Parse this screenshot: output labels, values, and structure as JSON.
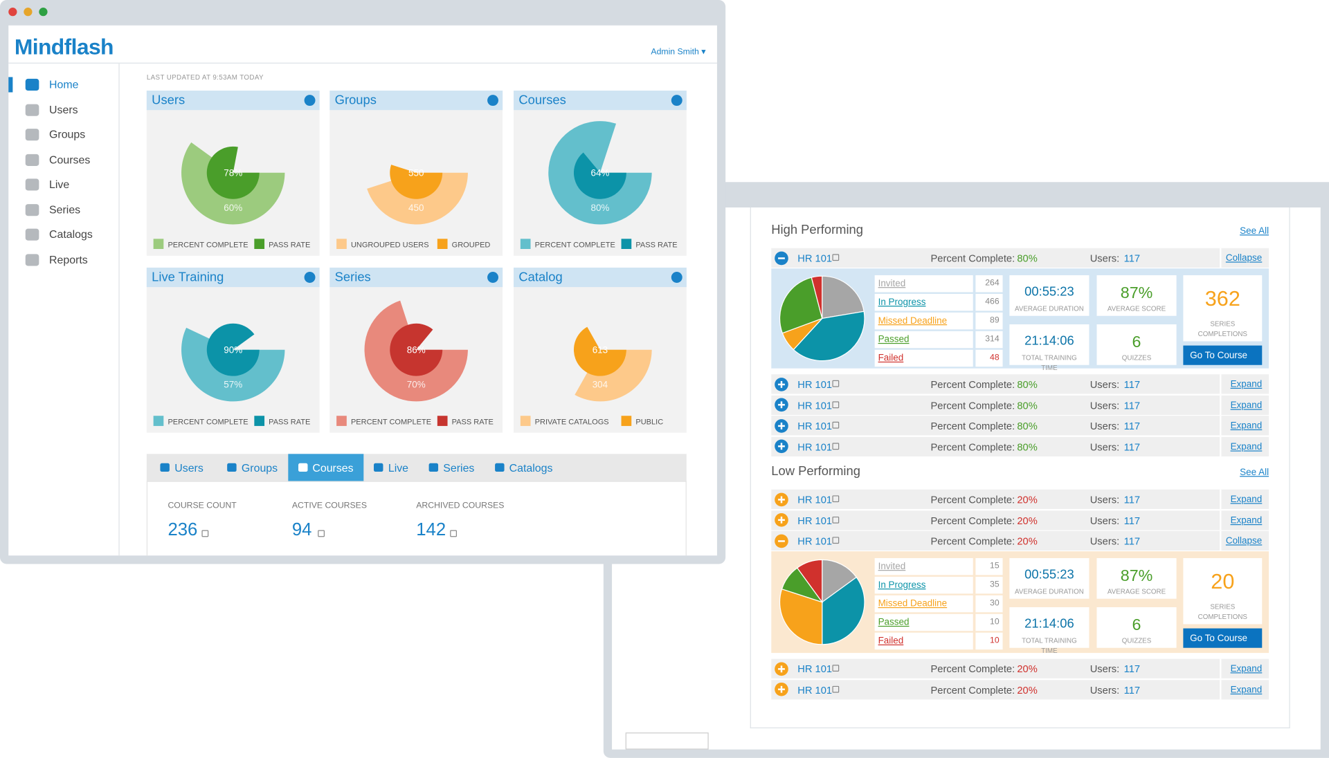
{
  "app": {
    "logo": "Mindflash",
    "user": "Admin Smith",
    "last_updated": "LAST UPDATED AT 9:53AM TODAY",
    "nav": [
      "Home",
      "Users",
      "Groups",
      "Courses",
      "Live",
      "Series",
      "Catalogs",
      "Reports"
    ],
    "active_nav": 0
  },
  "widgets": [
    {
      "title": "Users",
      "scale": "percent",
      "values": [
        60,
        78
      ],
      "value_labels": [
        "60%",
        "78%"
      ],
      "legend": [
        "PERCENT COMPLETE",
        "PASS RATE"
      ],
      "colors": [
        "#9ccb7e",
        "#4a9e2a"
      ]
    },
    {
      "title": "Groups",
      "scale": "share",
      "values": [
        450,
        550
      ],
      "legend": [
        "UNGROUPED USERS",
        "GROUPED"
      ],
      "colors": [
        "#fdc98a",
        "#f7a21b"
      ]
    },
    {
      "title": "Courses",
      "scale": "percent",
      "values": [
        80,
        64
      ],
      "value_labels": [
        "80%",
        "64%"
      ],
      "legend": [
        "PERCENT COMPLETE",
        "PASS RATE"
      ],
      "colors": [
        "#63bfcc",
        "#0c93a8"
      ]
    },
    {
      "title": "Live Training",
      "scale": "percent",
      "values": [
        57,
        90
      ],
      "value_labels": [
        "57%",
        "90%"
      ],
      "legend": [
        "PERCENT COMPLETE",
        "PASS RATE"
      ],
      "colors": [
        "#63bfcc",
        "#0c93a8"
      ]
    },
    {
      "title": "Series",
      "scale": "percent",
      "values": [
        70,
        86
      ],
      "value_labels": [
        "70%",
        "86%"
      ],
      "legend": [
        "PERCENT COMPLETE",
        "PASS RATE"
      ],
      "colors": [
        "#e8897c",
        "#c6352f"
      ]
    },
    {
      "title": "Catalog",
      "scale": "share",
      "values": [
        304,
        613
      ],
      "legend": [
        "PRIVATE CATALOGS",
        "PUBLIC"
      ],
      "colors": [
        "#fdc98a",
        "#f7a21b"
      ]
    }
  ],
  "tabs": [
    "Users",
    "Groups",
    "Courses",
    "Live",
    "Series",
    "Catalogs"
  ],
  "active_tab": 2,
  "stats": [
    {
      "label": "COURSE COUNT",
      "value": 236
    },
    {
      "label": "ACTIVE COURSES",
      "value": 94
    },
    {
      "label": "ARCHIVED COURSES",
      "value": 142
    }
  ],
  "report": {
    "sections": [
      {
        "title": "High Performing",
        "see_all": "See All",
        "icon_color": "#1a82c8",
        "metric_color": "#4a9e2a",
        "detail_bg": "#d4e6f4",
        "rows": [
          {
            "course": "HR 101",
            "metric_label": "Percent Complete:",
            "metric": "80%",
            "users_label": "Users:",
            "users": 117,
            "action": "Collapse",
            "detail": {
              "statuses": [
                {
                  "name": "Invited",
                  "count": 264,
                  "color": "#a6a6a6"
                },
                {
                  "name": "In Progress",
                  "count": 466,
                  "color": "#0c93a8"
                },
                {
                  "name": "Missed Deadline",
                  "count": 89,
                  "color": "#f7a21b"
                },
                {
                  "name": "Passed",
                  "count": 314,
                  "color": "#4a9e2a"
                },
                {
                  "name": "Failed",
                  "count": 48,
                  "color": "#d0312d"
                }
              ],
              "duration": "00:55:23",
              "duration_label": "AVERAGE DURATION",
              "score": "87%",
              "score_label": "AVERAGE SCORE",
              "completions": 362,
              "completions_label": "SERIES COMPLETIONS",
              "training": "21:14:06",
              "training_label": "TOTAL TRAINING TIME",
              "quizzes": 6,
              "quizzes_label": "QUIZZES",
              "button": "Go To Course"
            }
          },
          {
            "course": "HR 101",
            "metric_label": "Percent Complete:",
            "metric": "80%",
            "users_label": "Users:",
            "users": 117,
            "action": "Expand"
          },
          {
            "course": "HR 101",
            "metric_label": "Percent Complete:",
            "metric": "80%",
            "users_label": "Users:",
            "users": 117,
            "action": "Expand"
          },
          {
            "course": "HR 101",
            "metric_label": "Percent Complete:",
            "metric": "80%",
            "users_label": "Users:",
            "users": 117,
            "action": "Expand"
          },
          {
            "course": "HR 101",
            "metric_label": "Percent Complete:",
            "metric": "80%",
            "users_label": "Users:",
            "users": 117,
            "action": "Expand"
          }
        ]
      },
      {
        "title": "Low Performing",
        "see_all": "See All",
        "icon_color": "#f7a21b",
        "metric_color": "#d0312d",
        "detail_bg": "#fbe8d0",
        "rows": [
          {
            "course": "HR 101",
            "metric_label": "Percent Complete:",
            "metric": "20%",
            "users_label": "Users:",
            "users": 117,
            "action": "Expand"
          },
          {
            "course": "HR 101",
            "metric_label": "Percent Complete:",
            "metric": "20%",
            "users_label": "Users:",
            "users": 117,
            "action": "Expand"
          },
          {
            "course": "HR 101",
            "metric_label": "Percent Complete:",
            "metric": "20%",
            "users_label": "Users:",
            "users": 117,
            "action": "Collapse",
            "detail": {
              "statuses": [
                {
                  "name": "Invited",
                  "count": 15,
                  "color": "#a6a6a6"
                },
                {
                  "name": "In Progress",
                  "count": 35,
                  "color": "#0c93a8"
                },
                {
                  "name": "Missed Deadline",
                  "count": 30,
                  "color": "#f7a21b"
                },
                {
                  "name": "Passed",
                  "count": 10,
                  "color": "#4a9e2a"
                },
                {
                  "name": "Failed",
                  "count": 10,
                  "color": "#d0312d"
                }
              ],
              "duration": "00:55:23",
              "duration_label": "AVERAGE DURATION",
              "score": "87%",
              "score_label": "AVERAGE SCORE",
              "completions": 20,
              "completions_label": "SERIES COMPLETIONS",
              "training": "21:14:06",
              "training_label": "TOTAL TRAINING TIME",
              "quizzes": 6,
              "quizzes_label": "QUIZZES",
              "button": "Go To Course"
            }
          },
          {
            "course": "HR 101",
            "metric_label": "Percent Complete:",
            "metric": "20%",
            "users_label": "Users:",
            "users": 117,
            "action": "Expand"
          },
          {
            "course": "HR 101",
            "metric_label": "Percent Complete:",
            "metric": "20%",
            "users_label": "Users:",
            "users": 117,
            "action": "Expand"
          }
        ]
      }
    ]
  }
}
